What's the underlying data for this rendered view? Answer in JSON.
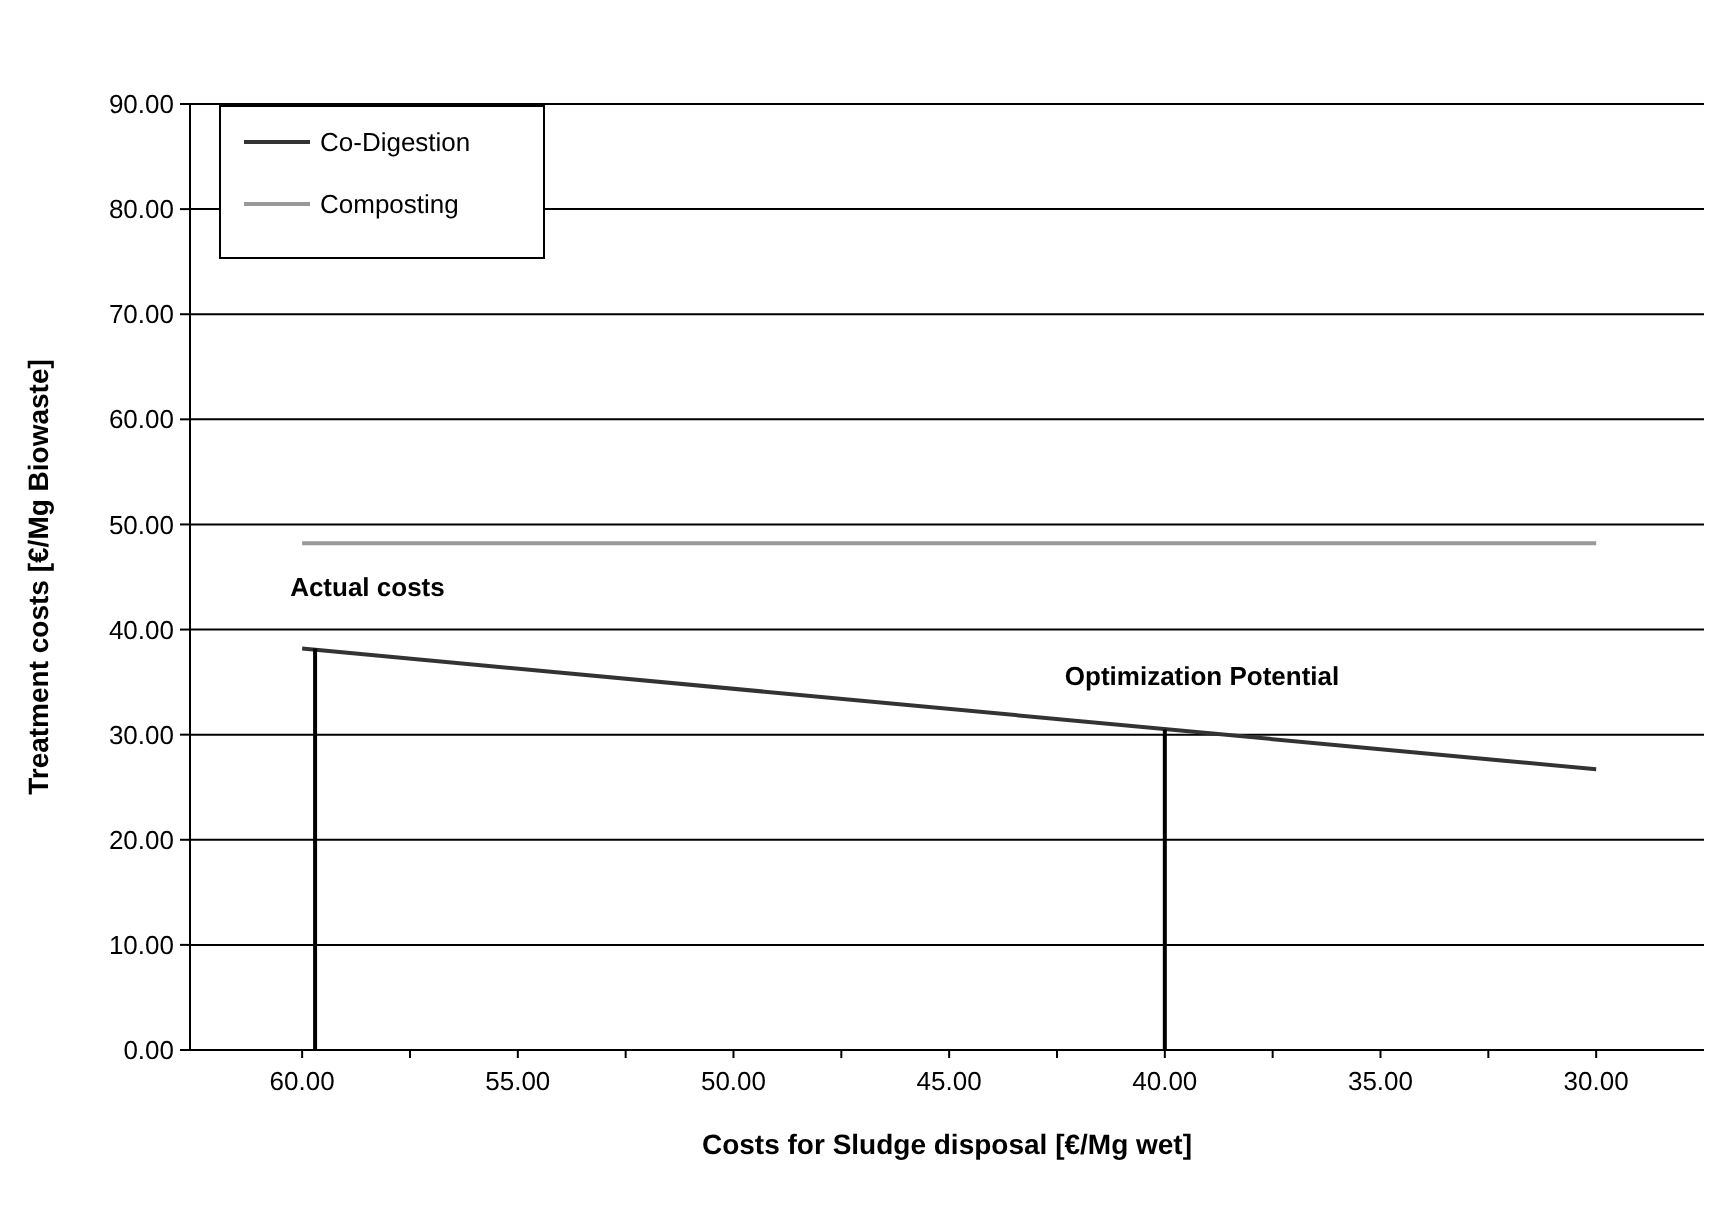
{
  "chart_data": {
    "type": "line",
    "xlabel": "Costs for Sludge disposal [€/Mg wet]",
    "ylabel": "Treatment costs [€/Mg Biowaste]",
    "xlim": [
      62.6,
      27.5
    ],
    "xticks": [
      {
        "value": 60,
        "label": "60.00"
      },
      {
        "value": 57.5,
        "label": null
      },
      {
        "value": 55,
        "label": "55.00"
      },
      {
        "value": 52.5,
        "label": null
      },
      {
        "value": 50,
        "label": "50.00"
      },
      {
        "value": 47.5,
        "label": null
      },
      {
        "value": 45,
        "label": "45.00"
      },
      {
        "value": 42.5,
        "label": null
      },
      {
        "value": 40,
        "label": "40.00"
      },
      {
        "value": 37.5,
        "label": null
      },
      {
        "value": 35,
        "label": "35.00"
      },
      {
        "value": 32.5,
        "label": null
      },
      {
        "value": 30,
        "label": "30.00"
      }
    ],
    "ylim": [
      0,
      90
    ],
    "yticks": [
      {
        "value": 0,
        "label": "0.00"
      },
      {
        "value": 10,
        "label": "10.00"
      },
      {
        "value": 20,
        "label": "20.00"
      },
      {
        "value": 30,
        "label": "30.00"
      },
      {
        "value": 40,
        "label": "40.00"
      },
      {
        "value": 50,
        "label": "50.00"
      },
      {
        "value": 60,
        "label": "60.00"
      },
      {
        "value": 70,
        "label": "70.00"
      },
      {
        "value": 80,
        "label": "80.00"
      },
      {
        "value": 90,
        "label": "90.00"
      }
    ],
    "grid": "y",
    "legend": "top left",
    "marker": "none",
    "line_style": "solid",
    "series": [
      {
        "name": "Co-Digestion",
        "color": "#333333",
        "x": [
          60,
          30
        ],
        "values": [
          38.2,
          26.7
        ]
      },
      {
        "name": "Composting",
        "color": "#999999",
        "x": [
          60,
          30
        ],
        "values": [
          48.2,
          48.2
        ]
      },
      {
        "color": "#000000",
        "x": [
          59.7,
          59.7
        ],
        "values": [
          0,
          38.2
        ]
      },
      {
        "color": "#000000",
        "x": [
          40,
          40
        ],
        "values": [
          0,
          30.5
        ]
      }
    ],
    "annotations": [
      {
        "text": "Actual costs",
        "x": 60,
        "y": 38.2
      },
      {
        "text": "Optimization Potential",
        "x": 40,
        "y": 30.5
      }
    ]
  }
}
